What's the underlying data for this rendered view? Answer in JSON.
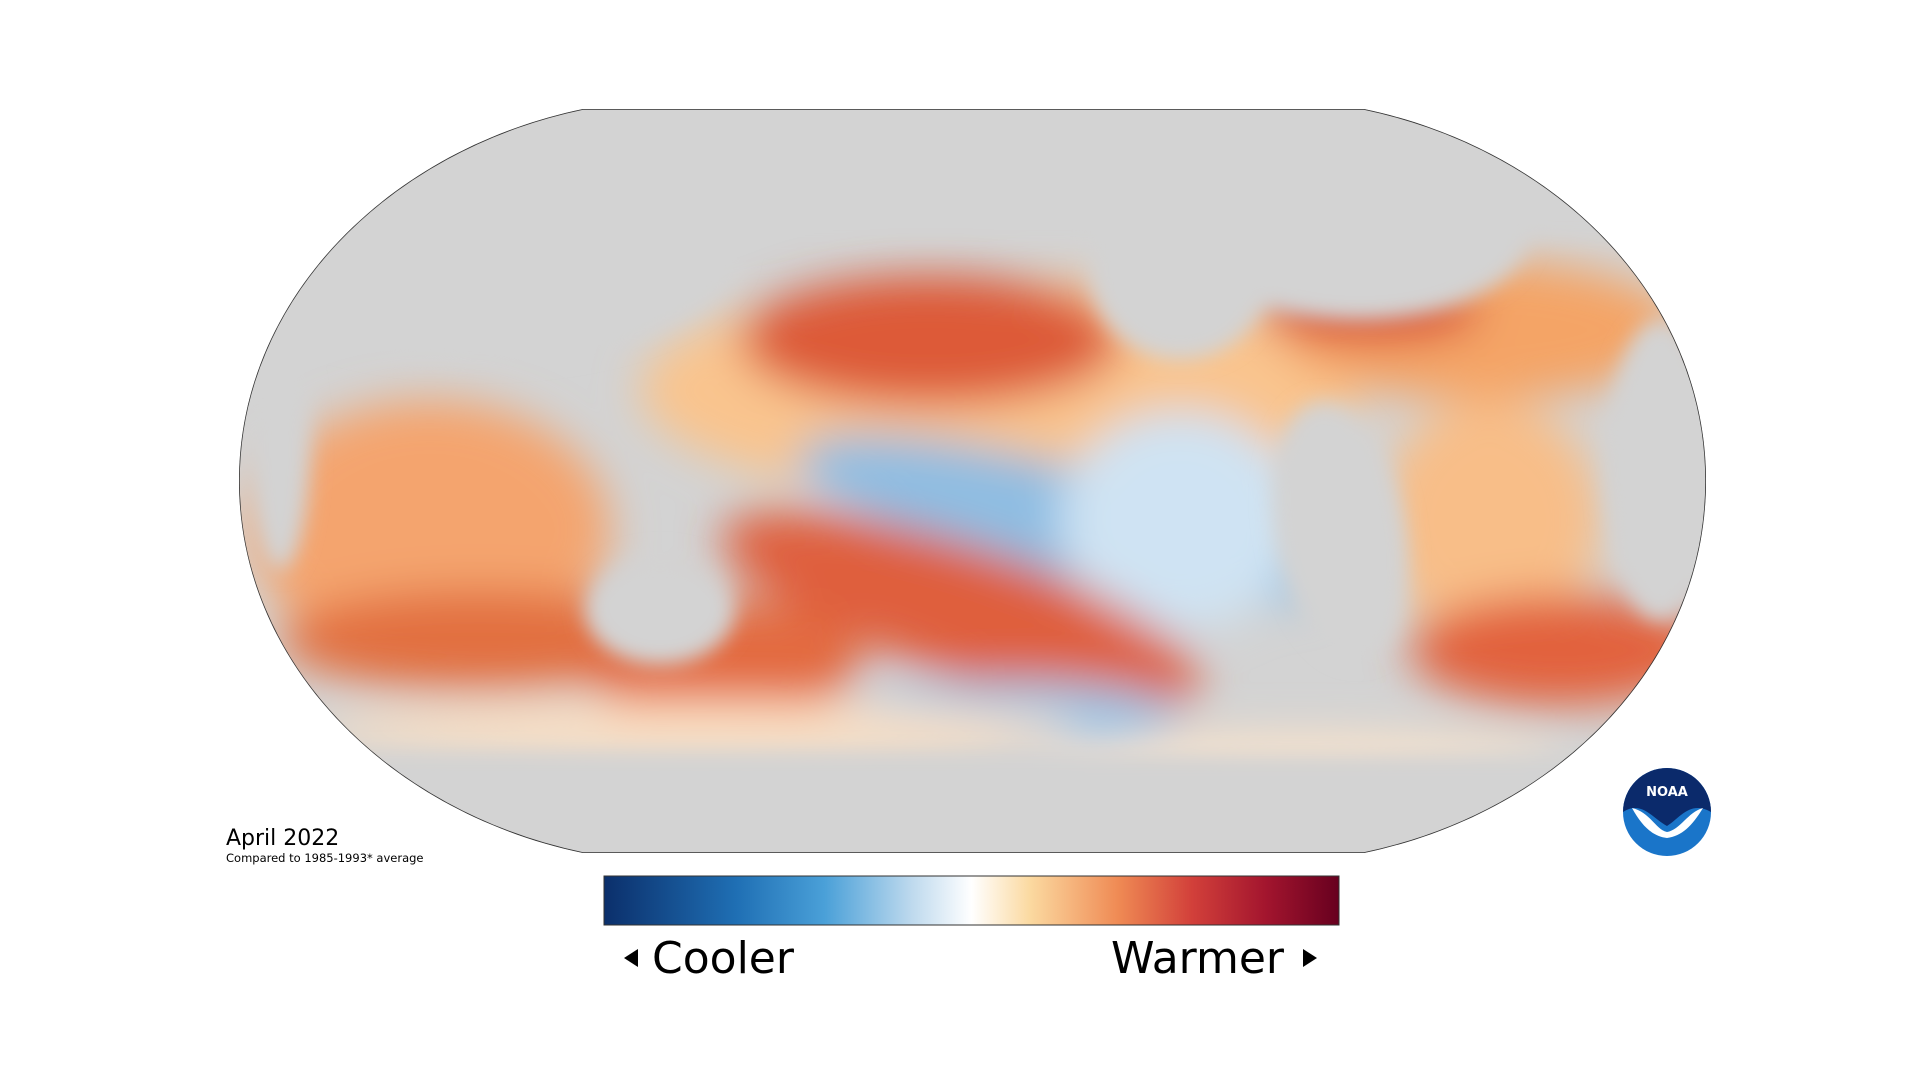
{
  "title": "April 2022",
  "subtitle": "Compared to 1985-1993* average",
  "legend": {
    "low_label": "Cooler",
    "high_label": "Warmer"
  },
  "logo": {
    "text": "NOAA"
  }
}
